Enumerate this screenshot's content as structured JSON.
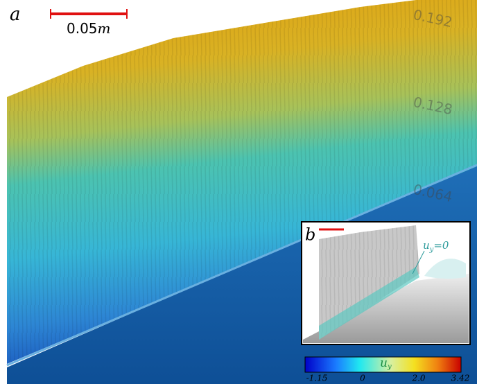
{
  "panel_a": {
    "label": "a",
    "scale_bar": {
      "value": "0.05",
      "unit": "m"
    },
    "axis_labels": [
      "0.192",
      "0.128",
      "0.064"
    ]
  },
  "panel_b": {
    "label": "b",
    "annotation": {
      "symbol": "u",
      "subscript": "y",
      "rest": "=0"
    }
  },
  "colorbar": {
    "symbol": "u",
    "subscript": "y",
    "ticks": [
      "-1.15",
      "0",
      "2.0",
      "3.42"
    ]
  }
}
